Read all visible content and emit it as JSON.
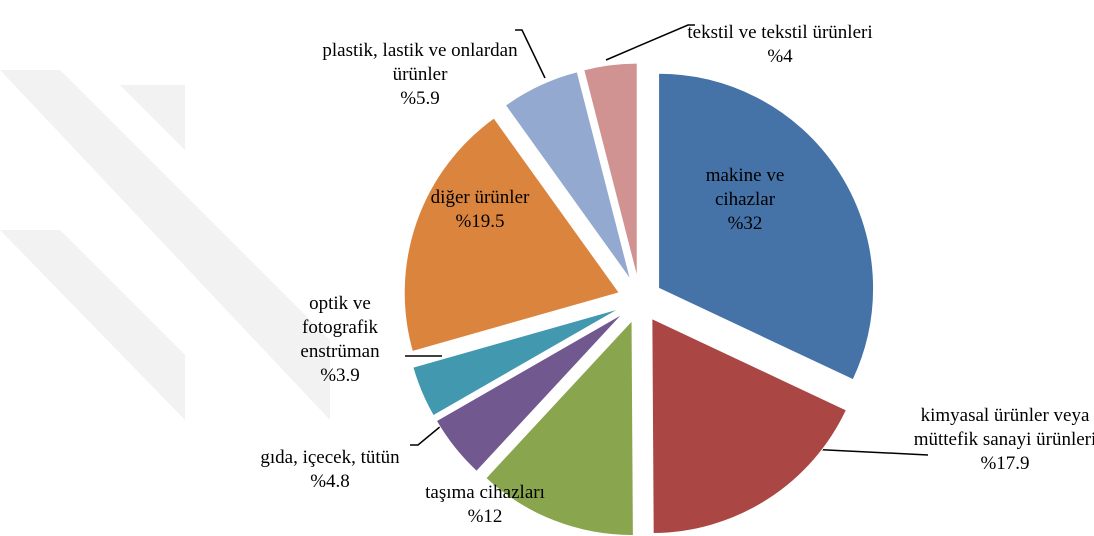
{
  "chart_data": {
    "type": "pie",
    "categories": [
      "makine ve cihazlar",
      "kimyasal ürünler veya müttefik sanayi ürünleri",
      "taşıma cihazları",
      "gıda, içecek, tütün",
      "optik ve fotografik enstrüman",
      "diğer ürünler",
      "plastik, lastik ve onlardan ürünler",
      "tekstil ve tekstil ürünleri"
    ],
    "values": [
      32,
      17.9,
      12,
      4.8,
      3.9,
      19.5,
      5.9,
      4
    ],
    "value_labels": [
      "%32",
      "%17.9",
      "%12",
      "%4.8",
      "%3.9",
      "%19.5",
      "%5.9",
      "%4"
    ],
    "colors": [
      "#4572a7",
      "#aa4643",
      "#89a54e",
      "#71588f",
      "#4198af",
      "#db843d",
      "#93a9cf",
      "#d09392"
    ]
  }
}
